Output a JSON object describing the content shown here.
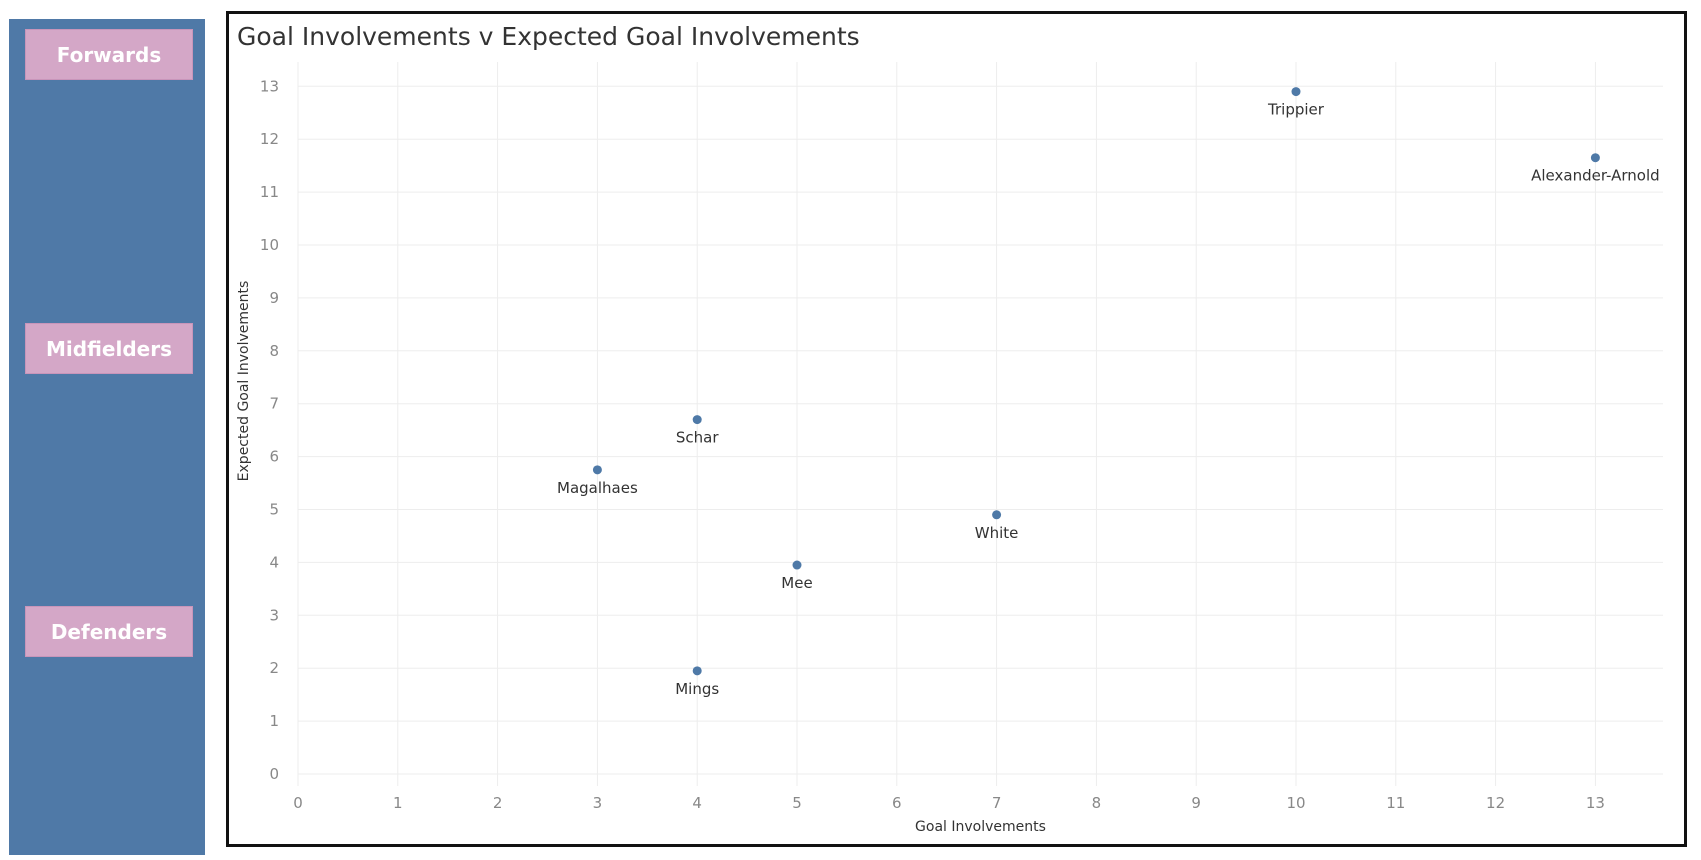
{
  "nav": {
    "forwards_label": "Forwards",
    "midfielders_label": "Midfielders",
    "defenders_label": "Defenders",
    "sidebar_color": "#4f79a7",
    "button_color": "#d4a7c7"
  },
  "chart_data": {
    "type": "scatter",
    "title": "Goal Involvements v Expected Goal Involvements",
    "xlabel": "Goal Involvements",
    "ylabel": "Expected Goal Involvements",
    "xlim": [
      0,
      14
    ],
    "ylim": [
      0,
      13
    ],
    "xticks": [
      0,
      1,
      2,
      3,
      4,
      5,
      6,
      7,
      8,
      9,
      10,
      11,
      12,
      13,
      14
    ],
    "yticks": [
      0,
      1,
      2,
      3,
      4,
      5,
      6,
      7,
      8,
      9,
      10,
      11,
      12,
      13
    ],
    "grid": true,
    "point_color": "#4e79a7",
    "points": [
      {
        "label": "Trippier",
        "x": 10,
        "y": 12.9
      },
      {
        "label": "Alexander-Arnold",
        "x": 13,
        "y": 11.65
      },
      {
        "label": "Schar",
        "x": 4,
        "y": 6.7
      },
      {
        "label": "Magalhaes",
        "x": 3,
        "y": 5.75
      },
      {
        "label": "White",
        "x": 7,
        "y": 4.9
      },
      {
        "label": "Mee",
        "x": 5,
        "y": 3.95
      },
      {
        "label": "Mings",
        "x": 4,
        "y": 1.95
      }
    ]
  }
}
